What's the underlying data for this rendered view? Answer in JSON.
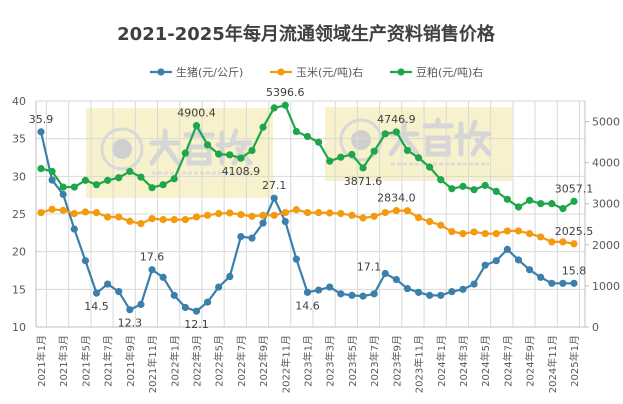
{
  "chart_data": {
    "type": "line",
    "title": "2021-2025年每月流通领域生产资料销售价格",
    "watermark": {
      "brand": "大畜牧",
      "url": "www.dxumu.com"
    },
    "colors": {
      "pig": "#3b80aa",
      "corn": "#f39a0f",
      "soymeal": "#1fa64a",
      "watermark": "#f5efbf"
    },
    "grid": true,
    "legend_position": "top",
    "y_left": {
      "range": [
        10,
        40
      ],
      "ticks": [
        10,
        15,
        20,
        25,
        30,
        35,
        40
      ]
    },
    "y_right": {
      "range": [
        0,
        5500
      ],
      "ticks": [
        0,
        1000,
        2000,
        3000,
        4000,
        5000
      ]
    },
    "x_tick_labels": [
      "2021年1月",
      "2021年3月",
      "2021年5月",
      "2021年7月",
      "2021年9月",
      "2021年11月",
      "2022年1月",
      "2022年3月",
      "2022年5月",
      "2022年7月",
      "2022年9月",
      "2022年11月",
      "2023年1月",
      "2023年3月",
      "2023年5月",
      "2023年7月",
      "2023年9月",
      "2023年11月",
      "2024年1月",
      "2024年3月",
      "2024年5月",
      "2024年7月",
      "2024年9月",
      "2024年11月",
      "2025年1月"
    ],
    "series": [
      {
        "name": "生猪(元/公斤)",
        "axis": "left",
        "color_key": "pig",
        "values": [
          35.9,
          29.5,
          27.6,
          23.0,
          18.8,
          14.5,
          15.7,
          14.7,
          12.3,
          13.0,
          17.6,
          16.6,
          14.2,
          12.6,
          12.1,
          13.3,
          15.3,
          16.7,
          22.0,
          21.8,
          23.8,
          27.1,
          24.0,
          19.0,
          14.6,
          14.9,
          15.3,
          14.4,
          14.2,
          14.1,
          14.4,
          17.1,
          16.3,
          15.1,
          14.6,
          14.2,
          14.2,
          14.7,
          15.0,
          15.7,
          18.2,
          18.8,
          20.3,
          18.9,
          17.6,
          16.6,
          15.8,
          15.8,
          15.8
        ],
        "labels": [
          {
            "i": 0,
            "text": "35.9",
            "pos": "above"
          },
          {
            "i": 5,
            "text": "14.5",
            "pos": "below"
          },
          {
            "i": 8,
            "text": "12.3",
            "pos": "below"
          },
          {
            "i": 10,
            "text": "17.6",
            "pos": "above"
          },
          {
            "i": 14,
            "text": "12.1",
            "pos": "below"
          },
          {
            "i": 21,
            "text": "27.1",
            "pos": "above"
          },
          {
            "i": 24,
            "text": "14.6",
            "pos": "below"
          },
          {
            "i": 31,
            "text": "17.1",
            "pos": "left"
          },
          {
            "i": 48,
            "text": "15.8",
            "pos": "above"
          }
        ]
      },
      {
        "name": "玉米(元/吨)右",
        "axis": "right",
        "color_key": "corn",
        "values": [
          2784,
          2864,
          2840,
          2760,
          2800,
          2784,
          2677,
          2677,
          2573,
          2517,
          2638,
          2614,
          2614,
          2614,
          2677,
          2718,
          2760,
          2774,
          2735,
          2694,
          2718,
          2718,
          2784,
          2856,
          2784,
          2784,
          2774,
          2760,
          2718,
          2653,
          2694,
          2784,
          2834,
          2830,
          2662,
          2565,
          2476,
          2322,
          2273,
          2313,
          2273,
          2273,
          2338,
          2338,
          2273,
          2192,
          2071,
          2071,
          2025.5
        ],
        "labels": [
          {
            "i": 32,
            "text": "2834.0",
            "pos": "above"
          },
          {
            "i": 48,
            "text": "2025.5",
            "pos": "above"
          }
        ]
      },
      {
        "name": "豆粕(元/吨)右",
        "axis": "right",
        "color_key": "soymeal",
        "values": [
          3856,
          3786,
          3405,
          3405,
          3568,
          3463,
          3568,
          3633,
          3786,
          3648,
          3390,
          3463,
          3608,
          4231,
          4900.4,
          4433,
          4207,
          4190,
          4108.9,
          4296,
          4861,
          5332,
          5396.6,
          4757,
          4636,
          4497,
          4036,
          4133,
          4199,
          3871.6,
          4279,
          4701,
          4746.9,
          4296,
          4119,
          3891,
          3584,
          3366,
          3422,
          3342,
          3446,
          3300,
          3107,
          2920,
          3082,
          3002,
          3002,
          2881,
          3057.1
        ],
        "labels": [
          {
            "i": 14,
            "text": "4900.4",
            "pos": "above"
          },
          {
            "i": 18,
            "text": "4108.9",
            "pos": "below"
          },
          {
            "i": 22,
            "text": "5396.6",
            "pos": "above"
          },
          {
            "i": 29,
            "text": "3871.6",
            "pos": "below"
          },
          {
            "i": 32,
            "text": "4746.9",
            "pos": "above"
          },
          {
            "i": 48,
            "text": "3057.1",
            "pos": "above"
          }
        ]
      }
    ]
  }
}
